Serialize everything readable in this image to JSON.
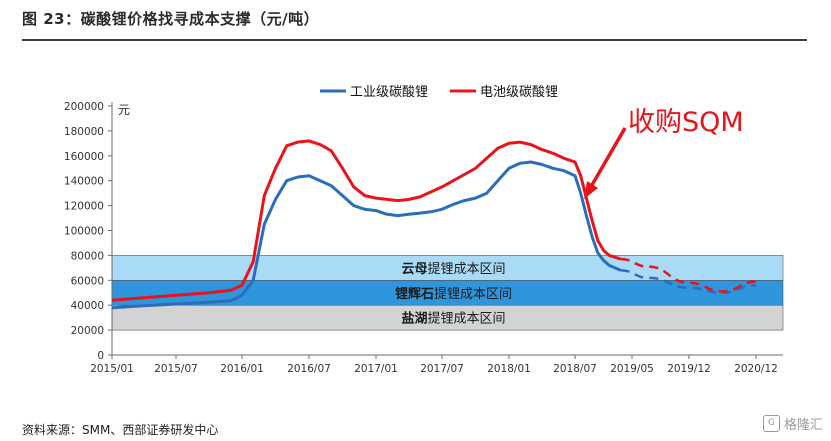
{
  "header": {
    "title": "图 23：碳酸锂价格找寻成本支撑（元/吨）"
  },
  "footer": {
    "source": "资料来源：SMM、西部证券研发中心"
  },
  "watermark": {
    "text": "格隆汇",
    "glyph": "G"
  },
  "chart_data": {
    "type": "line",
    "y_unit": "元",
    "ylim": [
      0,
      200000
    ],
    "y_ticks": [
      0,
      20000,
      40000,
      60000,
      80000,
      100000,
      120000,
      140000,
      160000,
      180000,
      200000
    ],
    "y_tick_labels": [
      "0",
      "20000",
      "40000",
      "60000",
      "80000",
      "100000",
      "120000",
      "140000",
      "160000",
      "180000",
      "200000"
    ],
    "x_tick_labels": [
      "2015/01",
      "2015/07",
      "2016/01",
      "2016/07",
      "2017/01",
      "2017/07",
      "2018/01",
      "2018/07",
      "2019/05",
      "2019/12",
      "2020/12"
    ],
    "legend": {
      "position": "top-center"
    },
    "bands": [
      {
        "label_bold": "盐湖",
        "label_rest": "提锂成本区间",
        "from": 20000,
        "to": 40000,
        "color": "#d3d3d3"
      },
      {
        "label_bold": "锂辉石",
        "label_rest": "提锂成本区间",
        "from": 40000,
        "to": 60000,
        "color": "#2f95dd"
      },
      {
        "label_bold": "云母",
        "label_rest": "提锂成本区间",
        "from": 60000,
        "to": 80000,
        "color": "#a9dbf6"
      }
    ],
    "annotation": {
      "text": "收购SQM",
      "color": "#e8141a"
    },
    "series": [
      {
        "name": "工业级碳酸锂",
        "color": "#2a6ebb",
        "values": [
          [
            "2015/01",
            38000
          ],
          [
            "2015/04",
            39500
          ],
          [
            "2015/07",
            41000
          ],
          [
            "2015/10",
            42500
          ],
          [
            "2015/12",
            43500
          ],
          [
            "2016/01",
            48000
          ],
          [
            "2016/02",
            60000
          ],
          [
            "2016/03",
            105000
          ],
          [
            "2016/04",
            125000
          ],
          [
            "2016/05",
            140000
          ],
          [
            "2016/06",
            143000
          ],
          [
            "2016/07",
            144000
          ],
          [
            "2016/08",
            140000
          ],
          [
            "2016/09",
            136000
          ],
          [
            "2016/10",
            128000
          ],
          [
            "2016/11",
            120000
          ],
          [
            "2016/12",
            117000
          ],
          [
            "2017/01",
            116000
          ],
          [
            "2017/02",
            113000
          ],
          [
            "2017/03",
            112000
          ],
          [
            "2017/04",
            113000
          ],
          [
            "2017/05",
            114000
          ],
          [
            "2017/06",
            115000
          ],
          [
            "2017/07",
            117000
          ],
          [
            "2017/08",
            121000
          ],
          [
            "2017/09",
            124000
          ],
          [
            "2017/10",
            126000
          ],
          [
            "2017/11",
            130000
          ],
          [
            "2017/12",
            140000
          ],
          [
            "2018/01",
            150000
          ],
          [
            "2018/02",
            154000
          ],
          [
            "2018/03",
            155000
          ],
          [
            "2018/04",
            153000
          ],
          [
            "2018/05",
            150000
          ],
          [
            "2018/06",
            148000
          ],
          [
            "2018/07",
            144000
          ],
          [
            "2018/08",
            130000
          ],
          [
            "2018/09",
            112000
          ],
          [
            "2018/10",
            95000
          ],
          [
            "2018/11",
            82000
          ],
          [
            "2018/12",
            76000
          ],
          [
            "2019/01",
            72000
          ],
          [
            "2019/03",
            68000
          ]
        ],
        "forecast": [
          [
            "2019/03",
            68000
          ],
          [
            "2019/07",
            62000
          ],
          [
            "2019/12",
            54000
          ],
          [
            "2020/06",
            50000
          ],
          [
            "2020/12",
            56000
          ]
        ]
      },
      {
        "name": "电池级碳酸锂",
        "color": "#e8141a",
        "values": [
          [
            "2015/01",
            44000
          ],
          [
            "2015/04",
            46000
          ],
          [
            "2015/07",
            48000
          ],
          [
            "2015/10",
            50000
          ],
          [
            "2015/12",
            52000
          ],
          [
            "2016/01",
            56000
          ],
          [
            "2016/02",
            75000
          ],
          [
            "2016/03",
            128000
          ],
          [
            "2016/04",
            150000
          ],
          [
            "2016/05",
            168000
          ],
          [
            "2016/06",
            171000
          ],
          [
            "2016/07",
            172000
          ],
          [
            "2016/08",
            169000
          ],
          [
            "2016/09",
            164000
          ],
          [
            "2016/10",
            150000
          ],
          [
            "2016/11",
            135000
          ],
          [
            "2016/12",
            128000
          ],
          [
            "2017/01",
            126000
          ],
          [
            "2017/02",
            125000
          ],
          [
            "2017/03",
            124000
          ],
          [
            "2017/04",
            125000
          ],
          [
            "2017/05",
            127000
          ],
          [
            "2017/06",
            131000
          ],
          [
            "2017/07",
            135000
          ],
          [
            "2017/08",
            140000
          ],
          [
            "2017/09",
            145000
          ],
          [
            "2017/10",
            150000
          ],
          [
            "2017/11",
            158000
          ],
          [
            "2017/12",
            166000
          ],
          [
            "2018/01",
            170000
          ],
          [
            "2018/02",
            171000
          ],
          [
            "2018/03",
            169000
          ],
          [
            "2018/04",
            165000
          ],
          [
            "2018/05",
            162000
          ],
          [
            "2018/06",
            158000
          ],
          [
            "2018/07",
            155000
          ],
          [
            "2018/08",
            144000
          ],
          [
            "2018/09",
            126000
          ],
          [
            "2018/10",
            108000
          ],
          [
            "2018/11",
            92000
          ],
          [
            "2018/12",
            84000
          ],
          [
            "2019/01",
            80000
          ],
          [
            "2019/03",
            77000
          ]
        ],
        "forecast": [
          [
            "2019/03",
            77000
          ],
          [
            "2019/07",
            71000
          ],
          [
            "2019/12",
            58000
          ],
          [
            "2020/06",
            51000
          ],
          [
            "2020/12",
            59000
          ]
        ]
      }
    ]
  }
}
